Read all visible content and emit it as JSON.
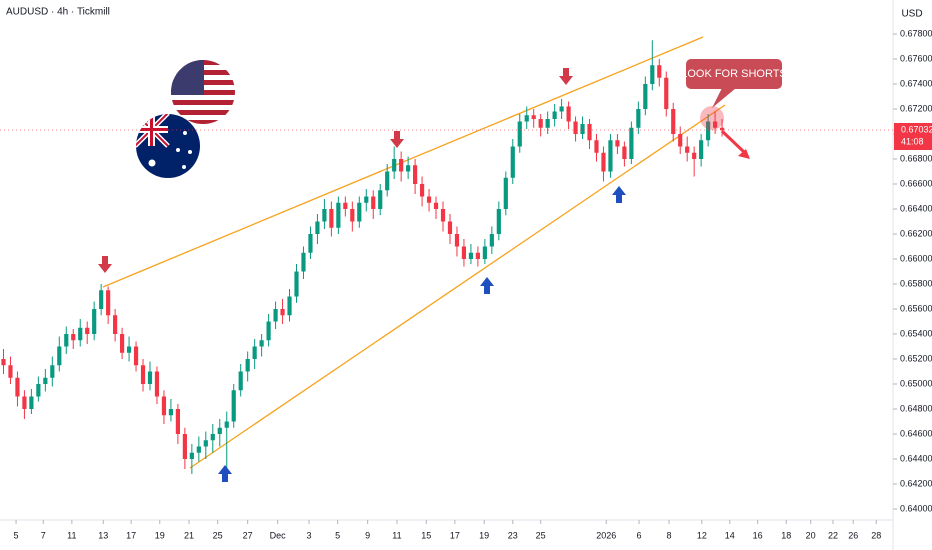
{
  "chart_data": {
    "type": "candlestick",
    "title": "AUDUSD · 4h · Tickmill",
    "currency": "USD",
    "up_color": "#089981",
    "down_color": "#f23645",
    "grid": false,
    "ylim": [
      0.63912,
      0.68072
    ],
    "yticks": [
      {
        "value": 0.64,
        "label": "0.64000"
      },
      {
        "value": 0.642,
        "label": "0.64200"
      },
      {
        "value": 0.644,
        "label": "0.64400"
      },
      {
        "value": 0.646,
        "label": "0.64600"
      },
      {
        "value": 0.648,
        "label": "0.64800"
      },
      {
        "value": 0.65,
        "label": "0.65000"
      },
      {
        "value": 0.652,
        "label": "0.65200"
      },
      {
        "value": 0.654,
        "label": "0.65400"
      },
      {
        "value": 0.656,
        "label": "0.65600"
      },
      {
        "value": 0.658,
        "label": "0.65800"
      },
      {
        "value": 0.66,
        "label": "0.66000"
      },
      {
        "value": 0.662,
        "label": "0.66200"
      },
      {
        "value": 0.664,
        "label": "0.66400"
      },
      {
        "value": 0.666,
        "label": "0.66600"
      },
      {
        "value": 0.668,
        "label": "0.66800"
      },
      {
        "value": 0.67,
        "label": "0.67000"
      },
      {
        "value": 0.672,
        "label": "0.67200"
      },
      {
        "value": 0.674,
        "label": "0.67400"
      },
      {
        "value": 0.676,
        "label": "0.67600"
      },
      {
        "value": 0.678,
        "label": "0.67800"
      }
    ],
    "xlim": [
      0,
      128
    ],
    "xticks": [
      {
        "value": 2.3,
        "label": "5"
      },
      {
        "value": 6.2,
        "label": "7"
      },
      {
        "value": 10.3,
        "label": "11"
      },
      {
        "value": 14.8,
        "label": "13"
      },
      {
        "value": 18.8,
        "label": "17"
      },
      {
        "value": 22.9,
        "label": "19"
      },
      {
        "value": 27.1,
        "label": "21"
      },
      {
        "value": 31.2,
        "label": "25"
      },
      {
        "value": 35.5,
        "label": "27"
      },
      {
        "value": 39.8,
        "label": "Dec"
      },
      {
        "value": 44.3,
        "label": "3"
      },
      {
        "value": 48.4,
        "label": "5"
      },
      {
        "value": 52.7,
        "label": "9"
      },
      {
        "value": 56.9,
        "label": "11"
      },
      {
        "value": 61.1,
        "label": "15"
      },
      {
        "value": 65.2,
        "label": "17"
      },
      {
        "value": 69.4,
        "label": "19"
      },
      {
        "value": 73.5,
        "label": "23"
      },
      {
        "value": 77.5,
        "label": "25"
      },
      {
        "value": 86.9,
        "label": "2026"
      },
      {
        "value": 91.6,
        "label": "6"
      },
      {
        "value": 95.9,
        "label": "8"
      },
      {
        "value": 100.6,
        "label": "12"
      },
      {
        "value": 104.6,
        "label": "14"
      },
      {
        "value": 108.6,
        "label": "16"
      },
      {
        "value": 112.7,
        "label": "18"
      },
      {
        "value": 116.2,
        "label": "20"
      },
      {
        "value": 119.4,
        "label": "22"
      },
      {
        "value": 122.3,
        "label": "26"
      },
      {
        "value": 125.6,
        "label": "28"
      }
    ],
    "ohlc": [
      [
        0.652,
        0.6528,
        0.6508,
        0.6515
      ],
      [
        0.6515,
        0.6522,
        0.65,
        0.6505
      ],
      [
        0.6505,
        0.651,
        0.6482,
        0.649
      ],
      [
        0.649,
        0.6495,
        0.6472,
        0.648
      ],
      [
        0.648,
        0.6496,
        0.6476,
        0.649
      ],
      [
        0.649,
        0.6506,
        0.6486,
        0.65
      ],
      [
        0.65,
        0.6512,
        0.6494,
        0.6505
      ],
      [
        0.6505,
        0.6522,
        0.6498,
        0.6515
      ],
      [
        0.6515,
        0.6538,
        0.651,
        0.653
      ],
      [
        0.653,
        0.6546,
        0.6524,
        0.654
      ],
      [
        0.654,
        0.6544,
        0.6528,
        0.6535
      ],
      [
        0.6535,
        0.6552,
        0.653,
        0.6545
      ],
      [
        0.6545,
        0.655,
        0.6532,
        0.654
      ],
      [
        0.654,
        0.6566,
        0.6535,
        0.656
      ],
      [
        0.656,
        0.658,
        0.6555,
        0.6575
      ],
      [
        0.6575,
        0.6578,
        0.6548,
        0.6555
      ],
      [
        0.6555,
        0.656,
        0.6534,
        0.654
      ],
      [
        0.654,
        0.6545,
        0.652,
        0.6525
      ],
      [
        0.6525,
        0.6538,
        0.6518,
        0.653
      ],
      [
        0.653,
        0.6534,
        0.651,
        0.6515
      ],
      [
        0.6515,
        0.652,
        0.6494,
        0.65
      ],
      [
        0.65,
        0.6518,
        0.6495,
        0.651
      ],
      [
        0.651,
        0.6514,
        0.6484,
        0.649
      ],
      [
        0.649,
        0.6495,
        0.6468,
        0.6475
      ],
      [
        0.6475,
        0.6488,
        0.647,
        0.648
      ],
      [
        0.648,
        0.6484,
        0.6452,
        0.646
      ],
      [
        0.646,
        0.6465,
        0.6432,
        0.644
      ],
      [
        0.644,
        0.6452,
        0.6428,
        0.6445
      ],
      [
        0.6445,
        0.6458,
        0.6438,
        0.645
      ],
      [
        0.645,
        0.6462,
        0.644,
        0.6455
      ],
      [
        0.6455,
        0.6468,
        0.6445,
        0.646
      ],
      [
        0.646,
        0.6472,
        0.645,
        0.6465
      ],
      [
        0.6465,
        0.6478,
        0.6425,
        0.647
      ],
      [
        0.647,
        0.65,
        0.6465,
        0.6495
      ],
      [
        0.6495,
        0.6516,
        0.649,
        0.651
      ],
      [
        0.651,
        0.6526,
        0.6502,
        0.652
      ],
      [
        0.652,
        0.6536,
        0.6512,
        0.653
      ],
      [
        0.653,
        0.654,
        0.6522,
        0.6535
      ],
      [
        0.6535,
        0.6556,
        0.653,
        0.655
      ],
      [
        0.655,
        0.6566,
        0.6544,
        0.656
      ],
      [
        0.656,
        0.6568,
        0.6548,
        0.6555
      ],
      [
        0.6555,
        0.6576,
        0.655,
        0.657
      ],
      [
        0.657,
        0.6596,
        0.6565,
        0.659
      ],
      [
        0.659,
        0.661,
        0.6584,
        0.6605
      ],
      [
        0.6605,
        0.6626,
        0.66,
        0.662
      ],
      [
        0.662,
        0.6636,
        0.6612,
        0.663
      ],
      [
        0.663,
        0.6648,
        0.6624,
        0.664
      ],
      [
        0.664,
        0.6646,
        0.6618,
        0.6625
      ],
      [
        0.6625,
        0.665,
        0.662,
        0.6645
      ],
      [
        0.6645,
        0.665,
        0.6634,
        0.664
      ],
      [
        0.664,
        0.6646,
        0.6622,
        0.663
      ],
      [
        0.663,
        0.665,
        0.6625,
        0.6645
      ],
      [
        0.6645,
        0.6656,
        0.6638,
        0.665
      ],
      [
        0.665,
        0.6655,
        0.6632,
        0.664
      ],
      [
        0.664,
        0.666,
        0.6635,
        0.6655
      ],
      [
        0.6655,
        0.6676,
        0.665,
        0.667
      ],
      [
        0.667,
        0.669,
        0.6664,
        0.668
      ],
      [
        0.668,
        0.6686,
        0.6662,
        0.667
      ],
      [
        0.667,
        0.6682,
        0.6664,
        0.6675
      ],
      [
        0.6675,
        0.668,
        0.6652,
        0.666
      ],
      [
        0.666,
        0.6666,
        0.6642,
        0.665
      ],
      [
        0.665,
        0.6656,
        0.6638,
        0.6645
      ],
      [
        0.6645,
        0.665,
        0.6632,
        0.664
      ],
      [
        0.664,
        0.6646,
        0.6622,
        0.663
      ],
      [
        0.663,
        0.6636,
        0.6612,
        0.662
      ],
      [
        0.662,
        0.6626,
        0.6602,
        0.661
      ],
      [
        0.661,
        0.6616,
        0.6594,
        0.66
      ],
      [
        0.66,
        0.6612,
        0.6596,
        0.6605
      ],
      [
        0.6605,
        0.661,
        0.6594,
        0.66
      ],
      [
        0.66,
        0.6616,
        0.6596,
        0.661
      ],
      [
        0.661,
        0.6626,
        0.6604,
        0.662
      ],
      [
        0.662,
        0.6646,
        0.6615,
        0.664
      ],
      [
        0.664,
        0.667,
        0.6635,
        0.6665
      ],
      [
        0.6665,
        0.6696,
        0.666,
        0.669
      ],
      [
        0.669,
        0.6716,
        0.6685,
        0.671
      ],
      [
        0.671,
        0.6722,
        0.6704,
        0.6715
      ],
      [
        0.6715,
        0.672,
        0.6705,
        0.6712
      ],
      [
        0.6712,
        0.6716,
        0.6698,
        0.6705
      ],
      [
        0.6705,
        0.6718,
        0.67,
        0.6712
      ],
      [
        0.6712,
        0.6724,
        0.6706,
        0.6718
      ],
      [
        0.6718,
        0.6728,
        0.6712,
        0.6722
      ],
      [
        0.6722,
        0.6726,
        0.6704,
        0.671
      ],
      [
        0.671,
        0.6714,
        0.6694,
        0.67
      ],
      [
        0.67,
        0.6714,
        0.6696,
        0.6708
      ],
      [
        0.6708,
        0.6712,
        0.6688,
        0.6695
      ],
      [
        0.6695,
        0.67,
        0.6678,
        0.6685
      ],
      [
        0.6685,
        0.669,
        0.6662,
        0.667
      ],
      [
        0.667,
        0.67,
        0.6665,
        0.6695
      ],
      [
        0.6695,
        0.67,
        0.6684,
        0.669
      ],
      [
        0.669,
        0.6694,
        0.6674,
        0.668
      ],
      [
        0.668,
        0.671,
        0.6676,
        0.6705
      ],
      [
        0.6705,
        0.6726,
        0.67,
        0.672
      ],
      [
        0.672,
        0.6746,
        0.6715,
        0.674
      ],
      [
        0.674,
        0.6775,
        0.6735,
        0.6755
      ],
      [
        0.6755,
        0.676,
        0.6738,
        0.6745
      ],
      [
        0.6745,
        0.675,
        0.6714,
        0.672
      ],
      [
        0.672,
        0.6725,
        0.6694,
        0.67
      ],
      [
        0.67,
        0.6706,
        0.6684,
        0.669
      ],
      [
        0.669,
        0.6698,
        0.6678,
        0.6685
      ],
      [
        0.6685,
        0.669,
        0.6666,
        0.668
      ],
      [
        0.668,
        0.67,
        0.6674,
        0.6695
      ],
      [
        0.6695,
        0.6716,
        0.669,
        0.671
      ],
      [
        0.671,
        0.6718,
        0.67,
        0.6705
      ],
      [
        0.6705,
        0.6712,
        0.6698,
        0.67032
      ]
    ],
    "last_price": 0.67032,
    "countdown": "41:08",
    "annotation": "LOOK FOR SHORTS"
  }
}
